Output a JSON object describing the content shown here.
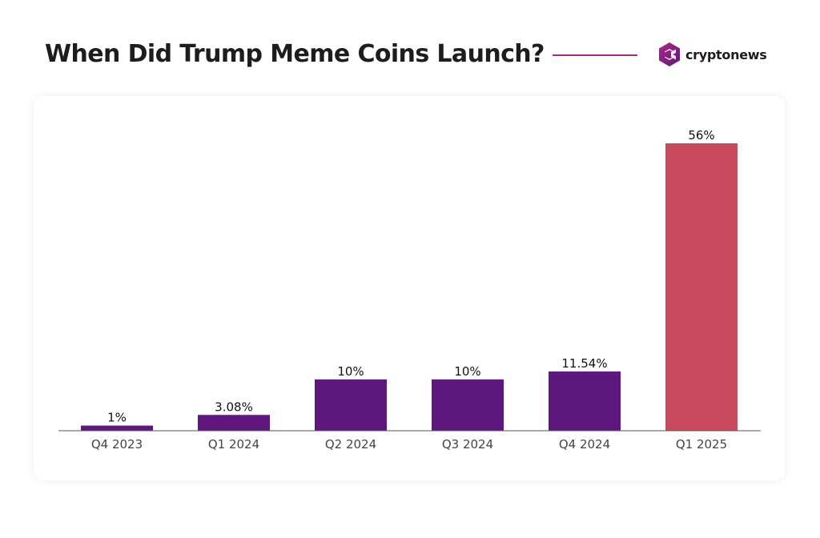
{
  "header": {
    "title": "When Did Trump Meme Coins Launch?",
    "brand": "cryptonews",
    "brand_icon": "cryptonews-logo-icon"
  },
  "colors": {
    "bar_default": "#5f1780",
    "bar_highlight": "#c84a5c",
    "title_rule": "#b12784",
    "axis": "#555555"
  },
  "chart_data": {
    "type": "bar",
    "title": "When Did Trump Meme Coins Launch?",
    "xlabel": "",
    "ylabel": "",
    "categories": [
      "Q4 2023",
      "Q1 2024",
      "Q2 2024",
      "Q3 2024",
      "Q4 2024",
      "Q1 2025"
    ],
    "values": [
      1,
      3.08,
      10,
      10,
      11.54,
      56
    ],
    "value_labels": [
      "1%",
      "3.08%",
      "10%",
      "10%",
      "11.54%",
      "56%"
    ],
    "ylim": [
      0,
      56
    ],
    "grid": false,
    "highlight_index": 5
  }
}
